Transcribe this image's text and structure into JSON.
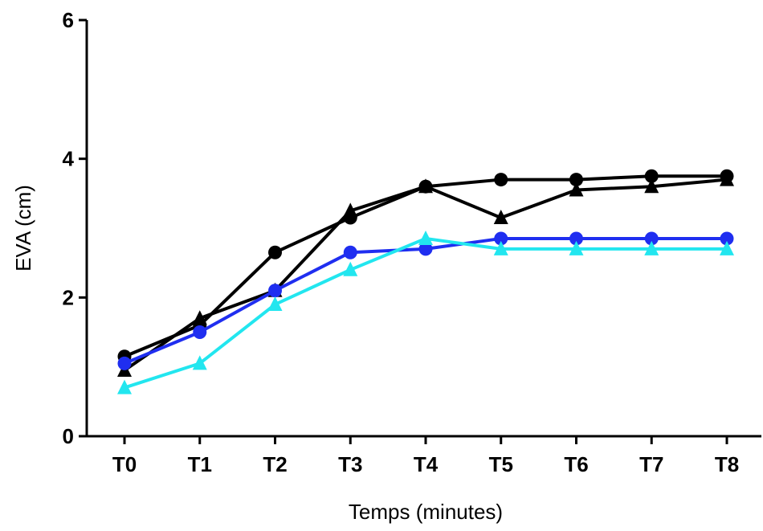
{
  "chart_data": {
    "type": "line",
    "title": "",
    "xlabel": "Temps (minutes)",
    "ylabel": "EVA (cm)",
    "categories": [
      "T0",
      "T1",
      "T2",
      "T3",
      "T4",
      "T5",
      "T6",
      "T7",
      "T8"
    ],
    "ylim": [
      0,
      6
    ],
    "yticks": [
      0,
      2,
      4,
      6
    ],
    "grid": false,
    "legend": "none",
    "series": [
      {
        "color": "#000000",
        "marker": "circle",
        "values": [
          1.15,
          1.6,
          2.65,
          3.15,
          3.6,
          3.7,
          3.7,
          3.75,
          3.75
        ]
      },
      {
        "color": "#000000",
        "marker": "triangle",
        "values": [
          0.95,
          1.7,
          2.1,
          3.25,
          3.6,
          3.15,
          3.55,
          3.6,
          3.7
        ]
      },
      {
        "color": "#1f2ef0",
        "marker": "circle",
        "values": [
          1.05,
          1.5,
          2.1,
          2.65,
          2.7,
          2.85,
          2.85,
          2.85,
          2.85
        ]
      },
      {
        "color": "#22e6ef",
        "marker": "triangle",
        "values": [
          0.7,
          1.05,
          1.9,
          2.4,
          2.85,
          2.7,
          2.7,
          2.7,
          2.7
        ]
      }
    ]
  }
}
